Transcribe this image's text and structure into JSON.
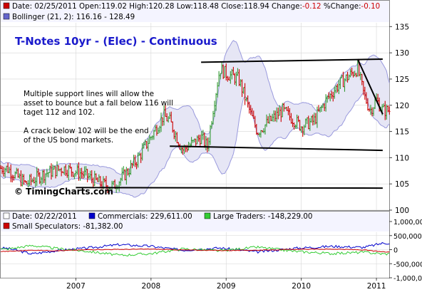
{
  "header": {
    "row1": [
      {
        "label": "Date: 02/25/2011",
        "color": "#000000"
      },
      {
        "label": "Open:119.02",
        "color": "#000000"
      },
      {
        "label": "High:120.28",
        "color": "#000000"
      },
      {
        "label": "Low:118.48",
        "color": "#000000"
      },
      {
        "label": "Close:118.94",
        "color": "#000000"
      },
      {
        "label": "Change:",
        "color": "#000000"
      },
      {
        "label": "-0.12",
        "color": "#cc0000"
      },
      {
        "label": "%Change:",
        "color": "#000000"
      },
      {
        "label": "-0.10",
        "color": "#cc0000"
      }
    ],
    "row2_label": "Bollinger (21, 2): 116.16 - 128.49",
    "swatch_price": "#cc0000",
    "swatch_boll": "#6666cc"
  },
  "title": "T-Notes 10yr - (Elec) - Continuous",
  "annotations": [
    "Multiple support lines will allow the",
    "asset to bounce but a fall below 116 will",
    "taget 112 and 102.",
    "",
    "A crack below 102 will be the end",
    "of the US bond markets."
  ],
  "watermark": "© TimingCharts.com",
  "lower_legend": {
    "row1": [
      {
        "label": "Date: 02/22/2011",
        "swatch": "#ffffff"
      },
      {
        "label": "Commercials: 229,611.00",
        "swatch": "#0000cc"
      },
      {
        "label": "Large Traders: -148,229.00",
        "swatch": "#33cc33"
      }
    ],
    "row2": [
      {
        "label": "Small Speculators: -81,382.00",
        "swatch": "#cc0000"
      }
    ]
  },
  "colors": {
    "up_bar": "#339933",
    "down_bar": "#cc0000",
    "band_fill": "#e6e6f5",
    "band_line": "#9999dd",
    "trend_line": "#000000",
    "title": "#0000cc",
    "commercials": "#0000cc",
    "large_traders": "#33cc33",
    "small_specs": "#cc0000"
  },
  "chart_data": [
    {
      "type": "ohlc",
      "title": "T-Notes 10yr - (Elec) - Continuous",
      "x_ticks": [
        "2007",
        "2008",
        "2009",
        "2010",
        "2011"
      ],
      "y_ticks": [
        100,
        105,
        110,
        115,
        120,
        125,
        130,
        135
      ],
      "ylim": [
        100,
        136
      ],
      "grid": true,
      "price_anchors": [
        [
          "2006-02",
          108
        ],
        [
          "2006-05",
          105
        ],
        [
          "2006-08",
          107
        ],
        [
          "2006-11",
          108
        ],
        [
          "2007-02",
          107
        ],
        [
          "2007-05",
          105
        ],
        [
          "2007-07",
          104.5
        ],
        [
          "2007-09",
          107
        ],
        [
          "2007-11",
          110
        ],
        [
          "2008-01",
          114
        ],
        [
          "2008-03",
          118
        ],
        [
          "2008-04",
          117
        ],
        [
          "2008-06",
          111.5
        ],
        [
          "2008-08",
          113
        ],
        [
          "2008-09",
          114
        ],
        [
          "2008-10",
          112
        ],
        [
          "2008-11",
          120
        ],
        [
          "2008-12",
          127
        ],
        [
          "2009-01",
          126
        ],
        [
          "2009-03",
          125
        ],
        [
          "2009-05",
          118
        ],
        [
          "2009-06",
          115
        ],
        [
          "2009-08",
          117
        ],
        [
          "2009-10",
          119
        ],
        [
          "2010-01",
          116
        ],
        [
          "2010-03",
          117
        ],
        [
          "2010-05",
          121
        ],
        [
          "2010-07",
          124
        ],
        [
          "2010-09",
          126
        ],
        [
          "2010-10",
          127
        ],
        [
          "2010-11",
          122
        ],
        [
          "2010-12",
          119
        ],
        [
          "2011-01",
          121
        ],
        [
          "2011-02",
          119
        ]
      ],
      "bollinger_settings": "21, 2",
      "bollinger_latest": [
        116.16,
        128.49
      ],
      "trend_lines": [
        {
          "from": [
            "2008-09",
            128.2
          ],
          "to": [
            "2011-02",
            128.8
          ]
        },
        {
          "from": [
            "2008-04",
            112.2
          ],
          "to": [
            "2011-02",
            111.4
          ]
        },
        {
          "from": [
            "2007-01",
            104.3
          ],
          "to": [
            "2011-02",
            104.2
          ]
        },
        {
          "from": [
            "2010-10",
            128.8
          ],
          "to": [
            "2011-02",
            118.3
          ]
        }
      ]
    },
    {
      "type": "line",
      "x_ticks": [
        "2007",
        "2008",
        "2009",
        "2010",
        "2011"
      ],
      "y_ticks": [
        "1,000,000",
        "500,000",
        "0",
        "-500,000",
        "-1,000,000"
      ],
      "ylim": [
        -1000000,
        1000000
      ],
      "series": [
        {
          "name": "Commercials",
          "latest": 229611,
          "anchors": [
            [
              "2006-02",
              50000
            ],
            [
              "2006-06",
              -150000
            ],
            [
              "2006-10",
              -30000
            ],
            [
              "2007-03",
              60000
            ],
            [
              "2007-08",
              180000
            ],
            [
              "2008-01",
              120000
            ],
            [
              "2008-06",
              -20000
            ],
            [
              "2008-12",
              60000
            ],
            [
              "2009-06",
              -80000
            ],
            [
              "2009-12",
              50000
            ],
            [
              "2010-06",
              120000
            ],
            [
              "2010-11",
              80000
            ],
            [
              "2011-02",
              229611
            ]
          ]
        },
        {
          "name": "Large Traders",
          "latest": -148229,
          "anchors": [
            [
              "2006-02",
              20000
            ],
            [
              "2006-06",
              150000
            ],
            [
              "2006-10",
              40000
            ],
            [
              "2007-03",
              -60000
            ],
            [
              "2007-08",
              -200000
            ],
            [
              "2008-01",
              -140000
            ],
            [
              "2008-06",
              30000
            ],
            [
              "2008-12",
              -40000
            ],
            [
              "2009-06",
              90000
            ],
            [
              "2009-12",
              -60000
            ],
            [
              "2010-06",
              -140000
            ],
            [
              "2010-11",
              -90000
            ],
            [
              "2011-02",
              -148229
            ]
          ]
        },
        {
          "name": "Small Speculators",
          "latest": -81382,
          "anchors": [
            [
              "2006-02",
              -60000
            ],
            [
              "2006-06",
              -20000
            ],
            [
              "2006-10",
              -40000
            ],
            [
              "2007-03",
              0
            ],
            [
              "2007-08",
              10000
            ],
            [
              "2008-01",
              20000
            ],
            [
              "2008-06",
              -10000
            ],
            [
              "2008-12",
              -30000
            ],
            [
              "2009-06",
              -20000
            ],
            [
              "2009-12",
              10000
            ],
            [
              "2010-06",
              20000
            ],
            [
              "2010-11",
              -10000
            ],
            [
              "2011-02",
              -81382
            ]
          ]
        }
      ]
    }
  ]
}
